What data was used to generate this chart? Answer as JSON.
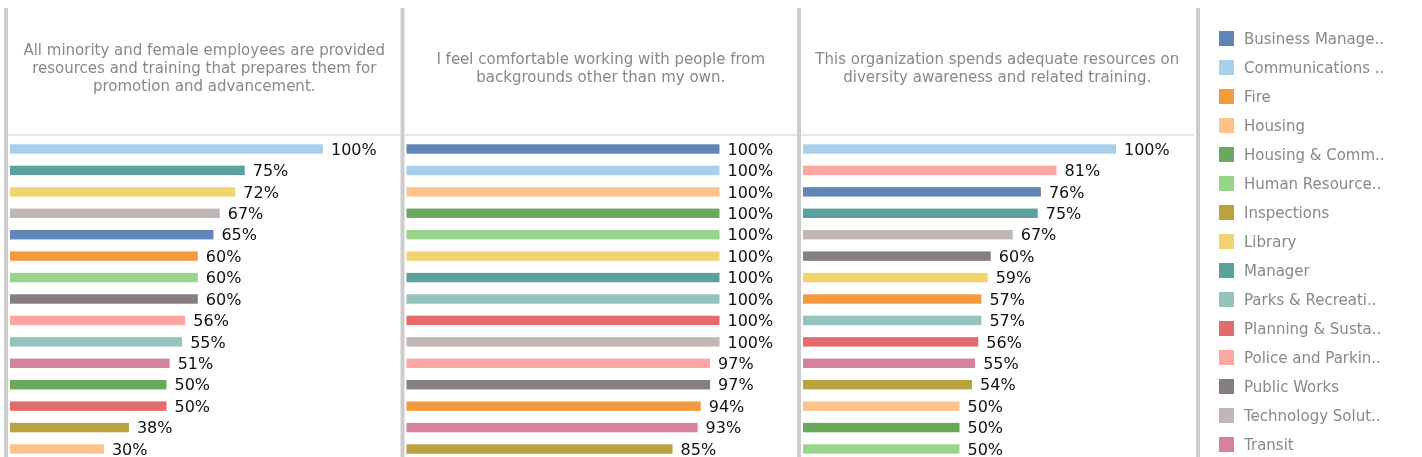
{
  "chart_data": [
    {
      "type": "bar",
      "orientation": "horizontal",
      "stacked": true,
      "title": "All minority and female employees are provided resources and training that prepares them for promotion and advancement.",
      "categories": [
        null,
        null,
        null,
        null,
        null,
        null,
        null,
        null,
        null,
        null,
        null,
        null,
        null,
        null,
        null
      ],
      "series": [
        {
          "color": "#5f86b4",
          "values": [
            null,
            null,
            null,
            null,
            65,
            null,
            null,
            null,
            null,
            null,
            null,
            null,
            null,
            null,
            null
          ],
          "value_labels": [
            null,
            null,
            null,
            null,
            "65%",
            null,
            null,
            null,
            null,
            null,
            null,
            null,
            null,
            null,
            null
          ]
        },
        {
          "color": "#a9cfea",
          "values": [
            100,
            null,
            null,
            null,
            null,
            null,
            null,
            null,
            null,
            null,
            null,
            null,
            null,
            null,
            null
          ],
          "value_labels": [
            "100%",
            null,
            null,
            null,
            null,
            null,
            null,
            null,
            null,
            null,
            null,
            null,
            null,
            null,
            null
          ]
        },
        {
          "color": "#f39b3e",
          "values": [
            null,
            null,
            null,
            null,
            null,
            60,
            null,
            null,
            null,
            null,
            null,
            null,
            null,
            null,
            null
          ],
          "value_labels": [
            null,
            null,
            null,
            null,
            null,
            "60%",
            null,
            null,
            null,
            null,
            null,
            null,
            null,
            null,
            null
          ]
        },
        {
          "color": "#ffc28a",
          "values": [
            null,
            null,
            null,
            null,
            null,
            null,
            null,
            null,
            null,
            null,
            null,
            null,
            null,
            null,
            30
          ],
          "value_labels": [
            null,
            null,
            null,
            null,
            null,
            null,
            null,
            null,
            null,
            null,
            null,
            null,
            null,
            null,
            "30%"
          ]
        },
        {
          "color": "#68a95c",
          "values": [
            null,
            null,
            null,
            null,
            null,
            null,
            null,
            null,
            null,
            null,
            null,
            50,
            null,
            null,
            null
          ],
          "value_labels": [
            null,
            null,
            null,
            null,
            null,
            null,
            null,
            null,
            null,
            null,
            null,
            "50%",
            null,
            null,
            null
          ]
        },
        {
          "color": "#98d48a",
          "values": [
            null,
            null,
            null,
            null,
            null,
            null,
            60,
            null,
            null,
            null,
            null,
            null,
            null,
            null,
            null
          ],
          "value_labels": [
            null,
            null,
            null,
            null,
            null,
            null,
            "60%",
            null,
            null,
            null,
            null,
            null,
            null,
            null,
            null
          ]
        },
        {
          "color": "#bba241",
          "values": [
            null,
            null,
            null,
            null,
            null,
            null,
            null,
            null,
            null,
            null,
            null,
            null,
            null,
            38,
            null
          ],
          "value_labels": [
            null,
            null,
            null,
            null,
            null,
            null,
            null,
            null,
            null,
            null,
            null,
            null,
            null,
            "38%",
            null
          ]
        },
        {
          "color": "#f1d36f",
          "values": [
            null,
            null,
            72,
            null,
            null,
            null,
            null,
            null,
            null,
            null,
            null,
            null,
            null,
            null,
            null
          ],
          "value_labels": [
            null,
            null,
            "72%",
            null,
            null,
            null,
            null,
            null,
            null,
            null,
            null,
            null,
            null,
            null,
            null
          ]
        },
        {
          "color": "#5ba29e",
          "values": [
            null,
            75,
            null,
            null,
            null,
            null,
            null,
            null,
            null,
            null,
            null,
            null,
            null,
            null,
            null
          ],
          "value_labels": [
            null,
            "75%",
            null,
            null,
            null,
            null,
            null,
            null,
            null,
            null,
            null,
            null,
            null,
            null,
            null
          ]
        },
        {
          "color": "#94c4bd",
          "values": [
            null,
            null,
            null,
            null,
            null,
            null,
            null,
            null,
            null,
            55,
            null,
            null,
            null,
            null,
            null
          ],
          "value_labels": [
            null,
            null,
            null,
            null,
            null,
            null,
            null,
            null,
            null,
            "55%",
            null,
            null,
            null,
            null,
            null
          ]
        },
        {
          "color": "#e46b6b",
          "values": [
            null,
            null,
            null,
            null,
            null,
            null,
            null,
            null,
            null,
            null,
            null,
            null,
            50,
            null,
            null
          ],
          "value_labels": [
            null,
            null,
            null,
            null,
            null,
            null,
            null,
            null,
            null,
            null,
            null,
            null,
            "50%",
            null,
            null
          ]
        },
        {
          "color": "#fda7a5",
          "values": [
            null,
            null,
            null,
            null,
            null,
            null,
            null,
            null,
            56,
            null,
            null,
            null,
            null,
            null,
            null
          ],
          "value_labels": [
            null,
            null,
            null,
            null,
            null,
            null,
            null,
            null,
            "56%",
            null,
            null,
            null,
            null,
            null,
            null
          ]
        },
        {
          "color": "#877f7e",
          "values": [
            null,
            null,
            null,
            null,
            null,
            null,
            null,
            60,
            null,
            null,
            null,
            null,
            null,
            null,
            null
          ],
          "value_labels": [
            null,
            null,
            null,
            null,
            null,
            null,
            null,
            "60%",
            null,
            null,
            null,
            null,
            null,
            null,
            null
          ]
        },
        {
          "color": "#c0b6b3",
          "values": [
            null,
            null,
            null,
            67,
            null,
            null,
            null,
            null,
            null,
            null,
            null,
            null,
            null,
            null,
            null
          ],
          "value_labels": [
            null,
            null,
            null,
            "67%",
            null,
            null,
            null,
            null,
            null,
            null,
            null,
            null,
            null,
            null,
            null
          ]
        },
        {
          "color": "#d6819e",
          "values": [
            null,
            null,
            null,
            null,
            null,
            null,
            null,
            null,
            null,
            null,
            51,
            null,
            null,
            null,
            null
          ],
          "value_labels": [
            null,
            null,
            null,
            null,
            null,
            null,
            null,
            null,
            null,
            null,
            "51%",
            null,
            null,
            null,
            null
          ]
        }
      ]
    },
    {
      "type": "bar",
      "orientation": "horizontal",
      "stacked": true,
      "title": "I feel comfortable working with people from backgrounds other than my own.",
      "categories": [
        null,
        null,
        null,
        null,
        null,
        null,
        null,
        null,
        null,
        null,
        null,
        null,
        null,
        null,
        null
      ],
      "series": [
        {
          "color": "#5f86b4",
          "values": [
            100,
            null,
            null,
            null,
            null,
            null,
            null,
            null,
            null,
            null,
            null,
            null,
            null,
            null,
            null
          ],
          "value_labels": [
            "100%",
            null,
            null,
            null,
            null,
            null,
            null,
            null,
            null,
            null,
            null,
            null,
            null,
            null,
            null
          ]
        },
        {
          "color": "#a9cfea",
          "values": [
            null,
            100,
            null,
            null,
            null,
            null,
            null,
            null,
            null,
            null,
            null,
            null,
            null,
            null,
            null
          ],
          "value_labels": [
            null,
            "100%",
            null,
            null,
            null,
            null,
            null,
            null,
            null,
            null,
            null,
            null,
            null,
            null,
            null
          ]
        },
        {
          "color": "#f39b3e",
          "values": [
            null,
            null,
            null,
            null,
            null,
            null,
            null,
            null,
            null,
            null,
            null,
            null,
            94,
            null,
            null
          ],
          "value_labels": [
            null,
            null,
            null,
            null,
            null,
            null,
            null,
            null,
            null,
            null,
            null,
            null,
            "94%",
            null,
            null
          ]
        },
        {
          "color": "#ffc28a",
          "values": [
            null,
            null,
            100,
            null,
            null,
            null,
            null,
            null,
            null,
            null,
            null,
            null,
            null,
            null,
            null
          ],
          "value_labels": [
            null,
            null,
            "100%",
            null,
            null,
            null,
            null,
            null,
            null,
            null,
            null,
            null,
            null,
            null,
            null
          ]
        },
        {
          "color": "#68a95c",
          "values": [
            null,
            null,
            null,
            100,
            null,
            null,
            null,
            null,
            null,
            null,
            null,
            null,
            null,
            null,
            null
          ],
          "value_labels": [
            null,
            null,
            null,
            "100%",
            null,
            null,
            null,
            null,
            null,
            null,
            null,
            null,
            null,
            null,
            null
          ]
        },
        {
          "color": "#98d48a",
          "values": [
            null,
            null,
            null,
            null,
            100,
            null,
            null,
            null,
            null,
            null,
            null,
            null,
            null,
            null,
            null
          ],
          "value_labels": [
            null,
            null,
            null,
            null,
            "100%",
            null,
            null,
            null,
            null,
            null,
            null,
            null,
            null,
            null,
            null
          ]
        },
        {
          "color": "#bba241",
          "values": [
            null,
            null,
            null,
            null,
            null,
            null,
            null,
            null,
            null,
            null,
            null,
            null,
            null,
            null,
            85
          ],
          "value_labels": [
            null,
            null,
            null,
            null,
            null,
            null,
            null,
            null,
            null,
            null,
            null,
            null,
            null,
            null,
            "85%"
          ]
        },
        {
          "color": "#f1d36f",
          "values": [
            null,
            null,
            null,
            null,
            null,
            100,
            null,
            null,
            null,
            null,
            null,
            null,
            null,
            null,
            null
          ],
          "value_labels": [
            null,
            null,
            null,
            null,
            null,
            "100%",
            null,
            null,
            null,
            null,
            null,
            null,
            null,
            null,
            null
          ]
        },
        {
          "color": "#5ba29e",
          "values": [
            null,
            null,
            null,
            null,
            null,
            null,
            100,
            null,
            null,
            null,
            null,
            null,
            null,
            null,
            null
          ],
          "value_labels": [
            null,
            null,
            null,
            null,
            null,
            null,
            "100%",
            null,
            null,
            null,
            null,
            null,
            null,
            null,
            null
          ]
        },
        {
          "color": "#94c4bd",
          "values": [
            null,
            null,
            null,
            null,
            null,
            null,
            null,
            100,
            null,
            null,
            null,
            null,
            null,
            null,
            null
          ],
          "value_labels": [
            null,
            null,
            null,
            null,
            null,
            null,
            null,
            "100%",
            null,
            null,
            null,
            null,
            null,
            null,
            null
          ]
        },
        {
          "color": "#e46b6b",
          "values": [
            null,
            null,
            null,
            null,
            null,
            null,
            null,
            null,
            100,
            null,
            null,
            null,
            null,
            null,
            null
          ],
          "value_labels": [
            null,
            null,
            null,
            null,
            null,
            null,
            null,
            null,
            "100%",
            null,
            null,
            null,
            null,
            null,
            null
          ]
        },
        {
          "color": "#fda7a5",
          "values": [
            null,
            null,
            null,
            null,
            null,
            null,
            null,
            null,
            null,
            null,
            97,
            null,
            null,
            null,
            null
          ],
          "value_labels": [
            null,
            null,
            null,
            null,
            null,
            null,
            null,
            null,
            null,
            null,
            "97%",
            null,
            null,
            null,
            null
          ]
        },
        {
          "color": "#877f7e",
          "values": [
            null,
            null,
            null,
            null,
            null,
            null,
            null,
            null,
            null,
            null,
            null,
            97,
            null,
            null,
            null
          ],
          "value_labels": [
            null,
            null,
            null,
            null,
            null,
            null,
            null,
            null,
            null,
            null,
            null,
            "97%",
            null,
            null,
            null
          ]
        },
        {
          "color": "#c0b6b3",
          "values": [
            null,
            null,
            null,
            null,
            null,
            null,
            null,
            null,
            null,
            100,
            null,
            null,
            null,
            null,
            null
          ],
          "value_labels": [
            null,
            null,
            null,
            null,
            null,
            null,
            null,
            null,
            null,
            "100%",
            null,
            null,
            null,
            null,
            null
          ]
        },
        {
          "color": "#d6819e",
          "values": [
            null,
            null,
            null,
            null,
            null,
            null,
            null,
            null,
            null,
            null,
            null,
            null,
            null,
            93,
            null
          ],
          "value_labels": [
            null,
            null,
            null,
            null,
            null,
            null,
            null,
            null,
            null,
            null,
            null,
            null,
            null,
            "93%",
            null
          ]
        }
      ]
    },
    {
      "type": "bar",
      "orientation": "horizontal",
      "stacked": true,
      "legend": "right",
      "title": "This organization spends adequate resources on diversity awareness and related training.",
      "categories": [
        null,
        null,
        null,
        null,
        null,
        null,
        null,
        null,
        null,
        null,
        null,
        null,
        null,
        null,
        null
      ],
      "series": [
        {
          "name": "Business Manage..",
          "color": "#5f86b4",
          "values": [
            null,
            null,
            76,
            null,
            null,
            null,
            null,
            null,
            null,
            null,
            null,
            null,
            null,
            null,
            null
          ],
          "value_labels": [
            null,
            null,
            "76%",
            null,
            null,
            null,
            null,
            null,
            null,
            null,
            null,
            null,
            null,
            null,
            null
          ]
        },
        {
          "name": "Communications ..",
          "color": "#a9cfea",
          "values": [
            100,
            null,
            null,
            null,
            null,
            null,
            null,
            null,
            null,
            null,
            null,
            null,
            null,
            null,
            null
          ],
          "value_labels": [
            "100%",
            null,
            null,
            null,
            null,
            null,
            null,
            null,
            null,
            null,
            null,
            null,
            null,
            null,
            null
          ]
        },
        {
          "name": "Fire",
          "color": "#f39b3e",
          "values": [
            null,
            null,
            null,
            null,
            null,
            null,
            null,
            57,
            null,
            null,
            null,
            null,
            null,
            null,
            null
          ],
          "value_labels": [
            null,
            null,
            null,
            null,
            null,
            null,
            null,
            "57%",
            null,
            null,
            null,
            null,
            null,
            null,
            null
          ]
        },
        {
          "name": "Housing",
          "color": "#ffc28a",
          "values": [
            null,
            null,
            null,
            null,
            null,
            null,
            null,
            null,
            null,
            null,
            null,
            null,
            50,
            null,
            null
          ],
          "value_labels": [
            null,
            null,
            null,
            null,
            null,
            null,
            null,
            null,
            null,
            null,
            null,
            null,
            "50%",
            null,
            null
          ]
        },
        {
          "name": "Housing & Comm..",
          "color": "#68a95c",
          "values": [
            null,
            null,
            null,
            null,
            null,
            null,
            null,
            null,
            null,
            null,
            null,
            null,
            null,
            50,
            null
          ],
          "value_labels": [
            null,
            null,
            null,
            null,
            null,
            null,
            null,
            null,
            null,
            null,
            null,
            null,
            null,
            "50%",
            null
          ]
        },
        {
          "name": "Human Resource..",
          "color": "#98d48a",
          "values": [
            null,
            null,
            null,
            null,
            null,
            null,
            null,
            null,
            null,
            null,
            null,
            null,
            null,
            null,
            50
          ],
          "value_labels": [
            null,
            null,
            null,
            null,
            null,
            null,
            null,
            null,
            null,
            null,
            null,
            null,
            null,
            null,
            "50%"
          ]
        },
        {
          "name": "Inspections",
          "color": "#bba241",
          "values": [
            null,
            null,
            null,
            null,
            null,
            null,
            null,
            null,
            null,
            null,
            null,
            54,
            null,
            null,
            null
          ],
          "value_labels": [
            null,
            null,
            null,
            null,
            null,
            null,
            null,
            null,
            null,
            null,
            null,
            "54%",
            null,
            null,
            null
          ]
        },
        {
          "name": "Library",
          "color": "#f1d36f",
          "values": [
            null,
            null,
            null,
            null,
            null,
            null,
            59,
            null,
            null,
            null,
            null,
            null,
            null,
            null,
            null
          ],
          "value_labels": [
            null,
            null,
            null,
            null,
            null,
            null,
            "59%",
            null,
            null,
            null,
            null,
            null,
            null,
            null,
            null
          ]
        },
        {
          "name": "Manager",
          "color": "#5ba29e",
          "values": [
            null,
            null,
            null,
            75,
            null,
            null,
            null,
            null,
            null,
            null,
            null,
            null,
            null,
            null,
            null
          ],
          "value_labels": [
            null,
            null,
            null,
            "75%",
            null,
            null,
            null,
            null,
            null,
            null,
            null,
            null,
            null,
            null,
            null
          ]
        },
        {
          "name": "Parks & Recreati..",
          "color": "#94c4bd",
          "values": [
            null,
            null,
            null,
            null,
            null,
            null,
            null,
            null,
            57,
            null,
            null,
            null,
            null,
            null,
            null
          ],
          "value_labels": [
            null,
            null,
            null,
            null,
            null,
            null,
            null,
            null,
            "57%",
            null,
            null,
            null,
            null,
            null,
            null
          ]
        },
        {
          "name": "Planning & Susta..",
          "color": "#e46b6b",
          "values": [
            null,
            null,
            null,
            null,
            null,
            null,
            null,
            null,
            null,
            56,
            null,
            null,
            null,
            null,
            null
          ],
          "value_labels": [
            null,
            null,
            null,
            null,
            null,
            null,
            null,
            null,
            null,
            "56%",
            null,
            null,
            null,
            null,
            null
          ]
        },
        {
          "name": "Police and Parkin..",
          "color": "#fda7a5",
          "values": [
            null,
            81,
            null,
            null,
            null,
            null,
            null,
            null,
            null,
            null,
            null,
            null,
            null,
            null,
            null
          ],
          "value_labels": [
            null,
            "81%",
            null,
            null,
            null,
            null,
            null,
            null,
            null,
            null,
            null,
            null,
            null,
            null,
            null
          ]
        },
        {
          "name": "Public Works",
          "color": "#877f7e",
          "values": [
            null,
            null,
            null,
            null,
            null,
            60,
            null,
            null,
            null,
            null,
            null,
            null,
            null,
            null,
            null
          ],
          "value_labels": [
            null,
            null,
            null,
            null,
            null,
            "60%",
            null,
            null,
            null,
            null,
            null,
            null,
            null,
            null,
            null
          ]
        },
        {
          "name": "Technology Solut..",
          "color": "#c0b6b3",
          "values": [
            null,
            null,
            null,
            null,
            67,
            null,
            null,
            null,
            null,
            null,
            null,
            null,
            null,
            null,
            null
          ],
          "value_labels": [
            null,
            null,
            null,
            null,
            "67%",
            null,
            null,
            null,
            null,
            null,
            null,
            null,
            null,
            null,
            null
          ]
        },
        {
          "name": "Transit",
          "color": "#d6819e",
          "values": [
            null,
            null,
            null,
            null,
            null,
            null,
            null,
            null,
            null,
            null,
            55,
            null,
            null,
            null,
            null
          ],
          "value_labels": [
            null,
            null,
            null,
            null,
            null,
            null,
            null,
            null,
            null,
            null,
            "55%",
            null,
            null,
            null,
            null
          ]
        }
      ]
    }
  ]
}
